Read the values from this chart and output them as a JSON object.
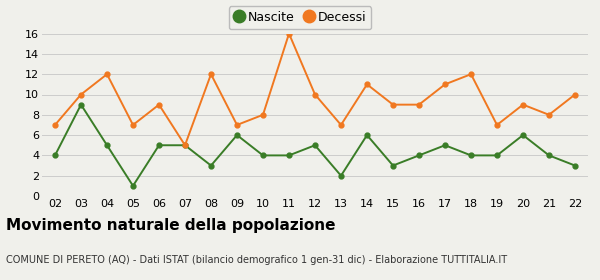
{
  "years": [
    "02",
    "03",
    "04",
    "05",
    "06",
    "07",
    "08",
    "09",
    "10",
    "11",
    "12",
    "13",
    "14",
    "15",
    "16",
    "17",
    "18",
    "19",
    "20",
    "21",
    "22"
  ],
  "nascite": [
    4,
    9,
    5,
    1,
    5,
    5,
    3,
    6,
    4,
    4,
    5,
    2,
    6,
    3,
    4,
    5,
    4,
    4,
    6,
    4,
    3
  ],
  "decessi": [
    7,
    10,
    12,
    7,
    9,
    5,
    12,
    7,
    8,
    16,
    10,
    7,
    11,
    9,
    9,
    11,
    12,
    7,
    9,
    8,
    10
  ],
  "nascite_color": "#3a7d27",
  "decessi_color": "#f07820",
  "title": "Movimento naturale della popolazione",
  "subtitle": "COMUNE DI PERETO (AQ) - Dati ISTAT (bilancio demografico 1 gen-31 dic) - Elaborazione TUTTITALIA.IT",
  "legend_nascite": "Nascite",
  "legend_decessi": "Decessi",
  "ylim": [
    0,
    16
  ],
  "yticks": [
    0,
    2,
    4,
    6,
    8,
    10,
    12,
    14,
    16
  ],
  "bg_color": "#f0f0eb",
  "grid_color": "#cccccc",
  "title_fontsize": 11,
  "subtitle_fontsize": 7,
  "tick_fontsize": 8
}
